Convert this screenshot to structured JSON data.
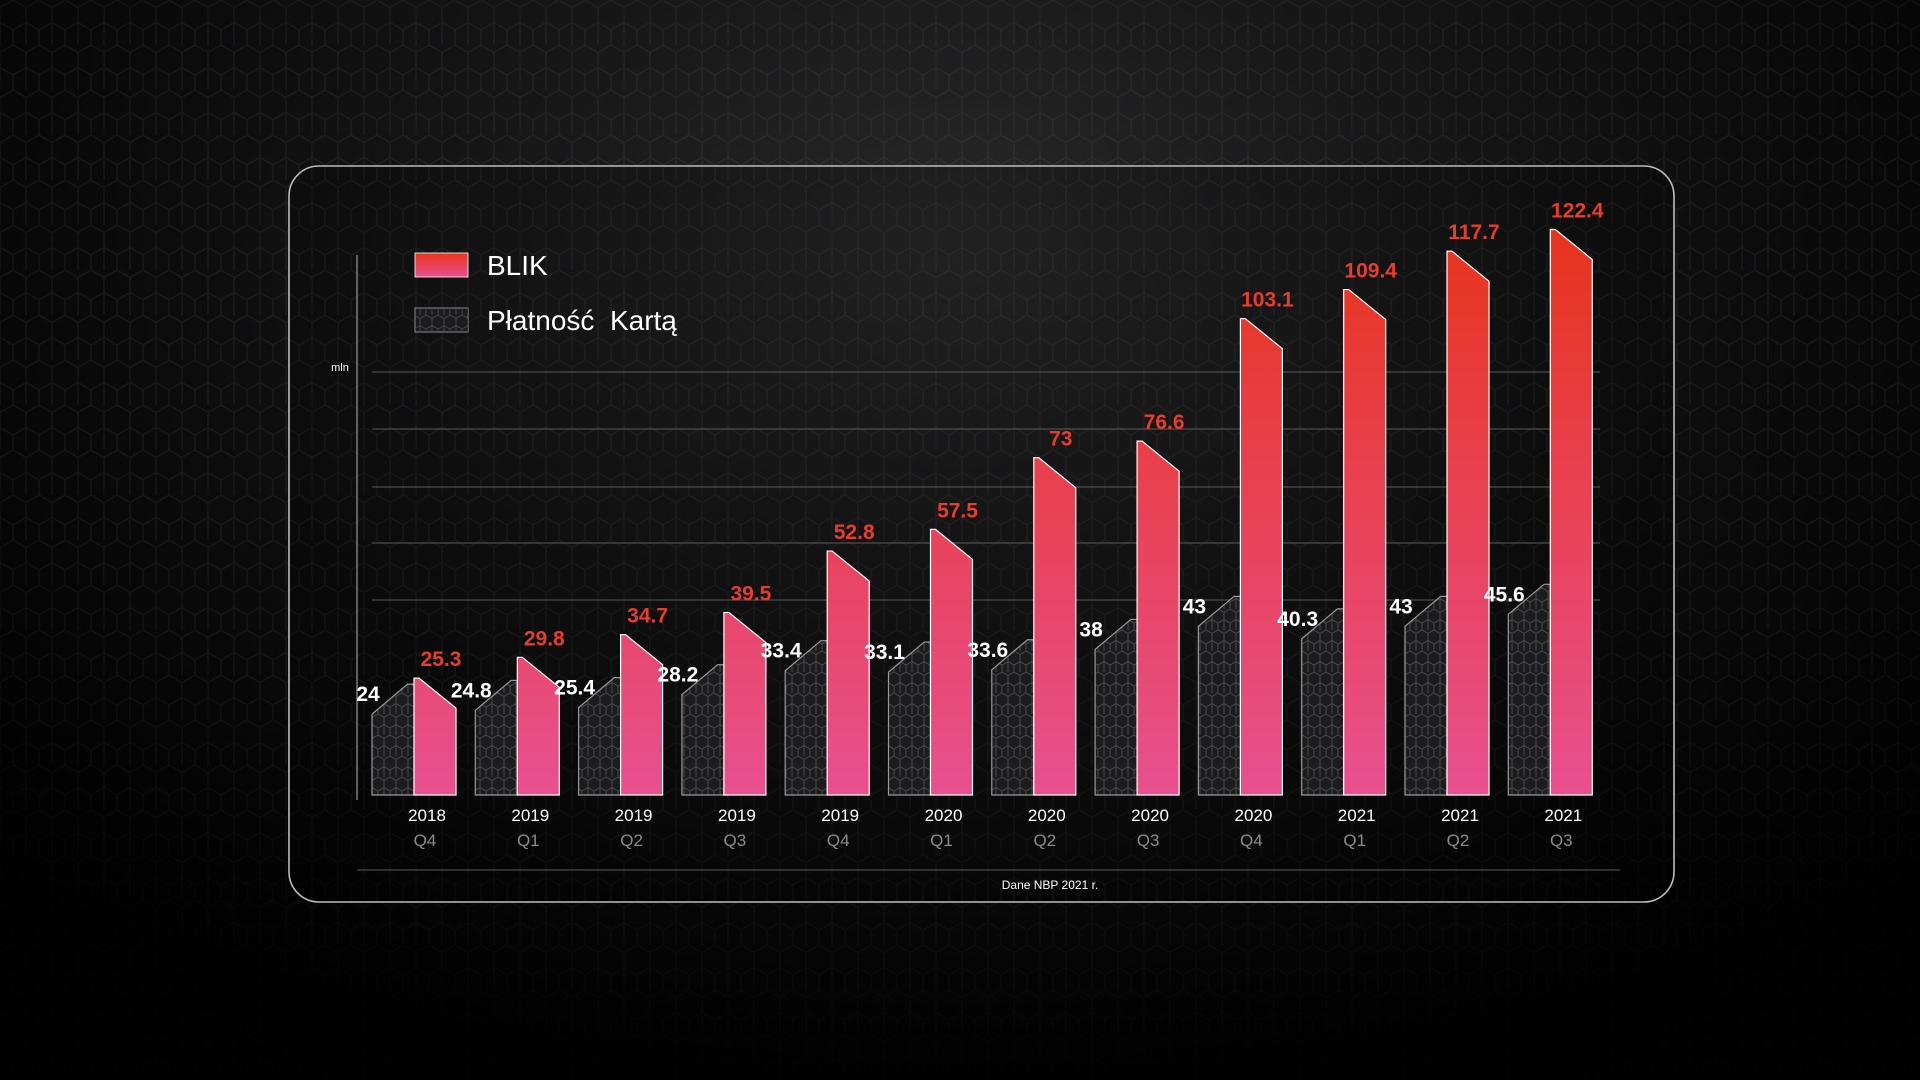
{
  "chart_data": {
    "type": "bar",
    "unit_label": "mln",
    "categories": [
      {
        "year": "2018",
        "quarter": "Q4"
      },
      {
        "year": "2019",
        "quarter": "Q1"
      },
      {
        "year": "2019",
        "quarter": "Q2"
      },
      {
        "year": "2019",
        "quarter": "Q3"
      },
      {
        "year": "2019",
        "quarter": "Q4"
      },
      {
        "year": "2020",
        "quarter": "Q1"
      },
      {
        "year": "2020",
        "quarter": "Q2"
      },
      {
        "year": "2020",
        "quarter": "Q3"
      },
      {
        "year": "2020",
        "quarter": "Q4"
      },
      {
        "year": "2021",
        "quarter": "Q1"
      },
      {
        "year": "2021",
        "quarter": "Q2"
      },
      {
        "year": "2021",
        "quarter": "Q3"
      }
    ],
    "series": [
      {
        "name": "BLIK",
        "values": [
          25.3,
          29.8,
          34.7,
          39.5,
          52.8,
          57.5,
          73,
          76.6,
          103.1,
          109.4,
          117.7,
          122.4
        ],
        "labels": [
          "25.3",
          "29.8",
          "34.7",
          "39.5",
          "52.8",
          "57.5",
          "73",
          "76.6",
          "103.1",
          "109.4",
          "117.7",
          "122.4"
        ],
        "color_top": "#e8341c",
        "color_bottom": "#e8508f",
        "label_color": "#e83c2c"
      },
      {
        "name": "Płatność  Kartą",
        "values": [
          24,
          24.8,
          25.4,
          28.2,
          33.4,
          33.1,
          33.6,
          38,
          43,
          40.3,
          43,
          45.6
        ],
        "labels": [
          "24",
          "24.8",
          "25.4",
          "28.2",
          "33.4",
          "33.1",
          "33.6",
          "38",
          "43",
          "40.3",
          "43",
          "45.6"
        ],
        "label_color": "#ffffff"
      }
    ],
    "legend_position": "top-left",
    "grid": true,
    "source_note": "Dane NBP 2021 r."
  }
}
